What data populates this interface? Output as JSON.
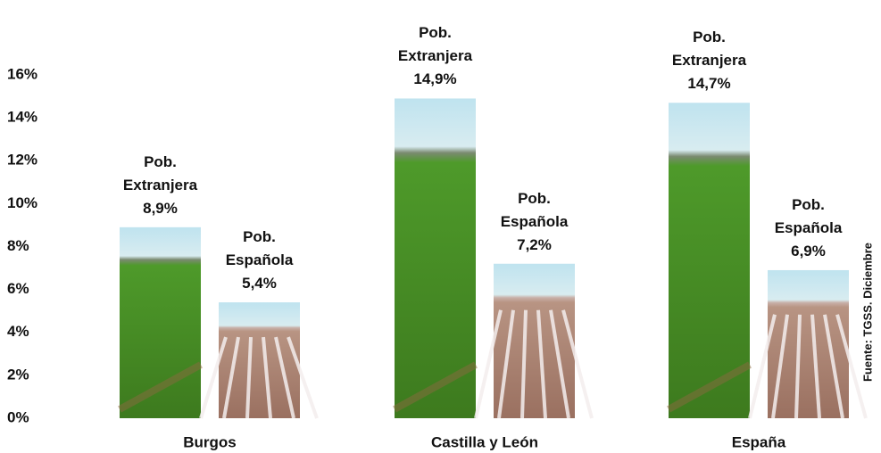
{
  "chart_data": {
    "type": "bar",
    "categories": [
      "Burgos",
      "Castilla y León",
      "España"
    ],
    "series": [
      {
        "name": "Pob. Extranjera",
        "color": "#4e9a2a",
        "values": [
          8.9,
          14.9,
          14.7
        ],
        "value_labels": [
          "8,9%",
          "14,9%",
          "14,7%"
        ]
      },
      {
        "name": "Pob. Española",
        "color": "#b89483",
        "values": [
          5.4,
          7.2,
          6.9
        ],
        "value_labels": [
          "5,4%",
          "7,2%",
          "6,9%"
        ]
      }
    ],
    "ylim": [
      0,
      16
    ],
    "yticks": [
      {
        "value": 0,
        "label": "0%"
      },
      {
        "value": 2,
        "label": "2%"
      },
      {
        "value": 4,
        "label": "4%"
      },
      {
        "value": 6,
        "label": "6%"
      },
      {
        "value": 8,
        "label": "8%"
      },
      {
        "value": 10,
        "label": "10%"
      },
      {
        "value": 12,
        "label": "12%"
      },
      {
        "value": 14,
        "label": "14%"
      },
      {
        "value": 16,
        "label": "16%"
      }
    ],
    "source": "Fuente: TGSS. Diciembre"
  }
}
